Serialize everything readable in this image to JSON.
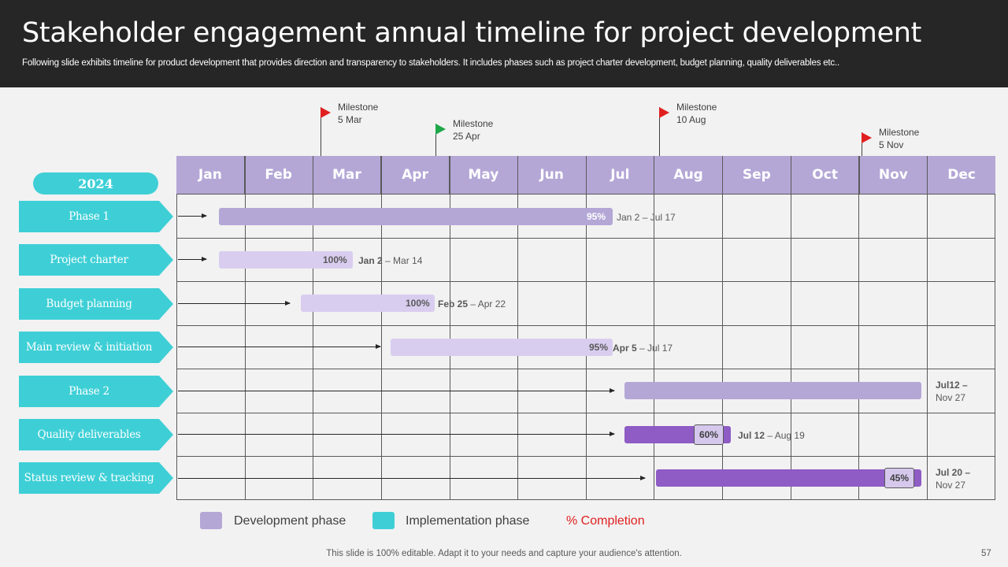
{
  "header": {
    "title": "Stakeholder engagement annual timeline for project development",
    "subtitle": "Following slide exhibits timeline for product development that provides direction and transparency to stakeholders. It includes phases such as project charter development, budget planning, quality deliverables etc.."
  },
  "milestones": [
    {
      "label": "Milestone",
      "date": "5 Mar",
      "flag_color": "#e02020"
    },
    {
      "label": "Milestone",
      "date": "25 Apr",
      "flag_color": "#1fa84a"
    },
    {
      "label": "Milestone",
      "date": "10 Aug",
      "flag_color": "#e02020"
    },
    {
      "label": "Milestone",
      "date": "5 Nov",
      "flag_color": "#e02020"
    }
  ],
  "months": [
    "Jan",
    "Feb",
    "Mar",
    "Apr",
    "May",
    "Jun",
    "Jul",
    "Aug",
    "Sep",
    "Oct",
    "Nov",
    "Dec"
  ],
  "year": "2024",
  "rows": [
    {
      "label": "Phase 1",
      "pct": "95%",
      "date_bold": "",
      "date_rest": "Jan 2 – Jul 17"
    },
    {
      "label": "Project charter",
      "pct": "100%",
      "date_bold": "Jan 2",
      "date_rest": " – Mar 14"
    },
    {
      "label": "Budget planning",
      "pct": "100%",
      "date_bold": "Feb 25",
      "date_rest": " – Apr 22"
    },
    {
      "label": "Main review & initiation",
      "pct": "95%",
      "date_bold": "Apr 5",
      "date_rest": " – Jul 17"
    },
    {
      "label": "Phase 2",
      "pct": "",
      "date_bold": "Jul12 –",
      "date_rest": "Nov 27"
    },
    {
      "label": "Quality deliverables",
      "pct": "60%",
      "date_bold": "Jul 12",
      "date_rest": " – Aug 19"
    },
    {
      "label": "Status review & tracking",
      "pct": "45%",
      "date_bold": "Jul 20 –",
      "date_rest": "Nov 27"
    }
  ],
  "legend": {
    "development": "Development phase",
    "implementation": "Implementation phase",
    "completion": "% Completion"
  },
  "colors": {
    "header_bg": "#262626",
    "month_header": "#b4a7d6",
    "teal": "#3ecfd6",
    "bar_mid": "#b4a7d6",
    "bar_light": "#d9cdef",
    "bar_dark": "#8e5cc4",
    "completion_red": "#e02020"
  },
  "footer": {
    "note": "This slide is 100% editable. Adapt it to your needs and capture your audience's attention.",
    "page": "57"
  }
}
